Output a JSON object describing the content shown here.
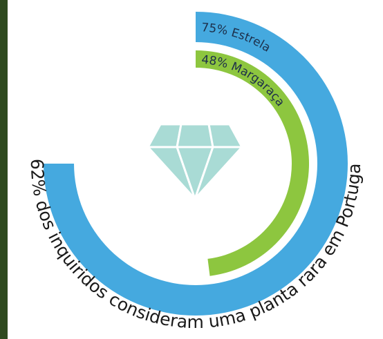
{
  "chart_data": {
    "type": "radial-bar",
    "categories": [
      "Estrela",
      "Margaraça"
    ],
    "values": [
      75,
      48
    ],
    "value_labels": [
      "75% Estrela",
      "48% Margaraça"
    ],
    "colors": [
      "#45a9df",
      "#8dc63f"
    ],
    "max": 100,
    "annotation": "62% dos inquiridos consideram uma planta rara em Portugal"
  }
}
